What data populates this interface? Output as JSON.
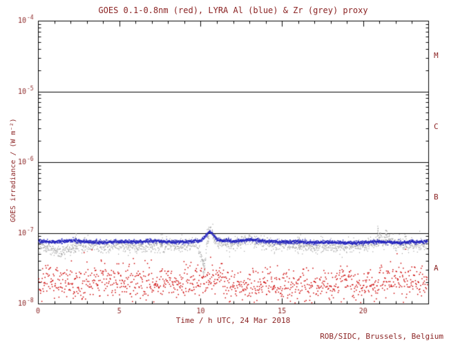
{
  "chart_data": {
    "type": "scatter",
    "title": "GOES 0.1-0.8nm (red), LYRA Al (blue) & Zr (grey) proxy",
    "xlabel": "Time / h UTC, 24 Mar 2018",
    "ylabel": "GOES irradiance / (W m⁻²)",
    "footer": "ROB/SIDC, Brussels, Belgium",
    "x_range": [
      0,
      24
    ],
    "x_major_ticks": [
      0,
      5,
      10,
      15,
      20
    ],
    "x_minor_step": 1,
    "y_exp_range": [
      -8,
      -4
    ],
    "y_tick_exponents": [
      -4,
      -5,
      -6,
      -7,
      -8
    ],
    "class_lines_exp": [
      -5,
      -6,
      -7
    ],
    "class_labels": [
      {
        "label": "M",
        "y_exp": -4.5
      },
      {
        "label": "C",
        "y_exp": -5.5
      },
      {
        "label": "B",
        "y_exp": -6.5
      },
      {
        "label": "A",
        "y_exp": -7.5
      }
    ],
    "colors": {
      "axis": "#000000",
      "text": "#8b2323",
      "red": "#cc0000",
      "blue": "#2020bb",
      "grey": "#a0a0a0"
    },
    "legend_position": "none",
    "grid": false,
    "series": [
      {
        "name": "LYRA Zr proxy",
        "color_key": "grey",
        "points_per_hour": 70,
        "noise_dex": 0.045,
        "dot": 1.2,
        "base": [
          [
            0,
            6.8e-08
          ],
          [
            0.5,
            6.2e-08
          ],
          [
            1,
            5.8e-08
          ],
          [
            1.5,
            5.2e-08
          ],
          [
            2,
            6e-08
          ],
          [
            2.5,
            6.5e-08
          ],
          [
            3,
            6.6e-08
          ],
          [
            4,
            6.4e-08
          ],
          [
            5,
            6.6e-08
          ],
          [
            6,
            6.3e-08
          ],
          [
            7,
            6.5e-08
          ],
          [
            8,
            6.6e-08
          ],
          [
            9,
            6.8e-08
          ],
          [
            9.8,
            7.2e-08
          ],
          [
            10.1,
            4e-08
          ],
          [
            10.25,
            2.8e-08
          ],
          [
            10.4,
            8e-08
          ],
          [
            10.6,
            1.15e-07
          ],
          [
            10.8,
            9e-08
          ],
          [
            11,
            7.5e-08
          ],
          [
            11.5,
            7e-08
          ],
          [
            12,
            6.8e-08
          ],
          [
            12.5,
            7.4e-08
          ],
          [
            13,
            8.2e-08
          ],
          [
            13.5,
            7.6e-08
          ],
          [
            14,
            7e-08
          ],
          [
            15,
            6.8e-08
          ],
          [
            16,
            6.6e-08
          ],
          [
            17,
            6.4e-08
          ],
          [
            18,
            6.6e-08
          ],
          [
            19,
            6.4e-08
          ],
          [
            20,
            6.6e-08
          ],
          [
            20.8,
            7e-08
          ],
          [
            21,
            9.5e-08
          ],
          [
            21.2,
            7.2e-08
          ],
          [
            21.5,
            8.5e-08
          ],
          [
            22,
            6.8e-08
          ],
          [
            23,
            6.6e-08
          ],
          [
            24,
            7e-08
          ]
        ],
        "spikes": [
          {
            "x": 2.3,
            "bottom": 5e-08,
            "top": 1.05e-07
          },
          {
            "x": 7.6,
            "bottom": 6e-08,
            "top": 9.5e-08
          },
          {
            "x": 10.2,
            "bottom": 2.4e-08,
            "top": 4.5e-08
          },
          {
            "x": 10.45,
            "bottom": 7e-08,
            "top": 1.35e-07
          },
          {
            "x": 16.1,
            "bottom": 6e-08,
            "top": 9.5e-08
          },
          {
            "x": 20.9,
            "bottom": 6.5e-08,
            "top": 1.25e-07
          },
          {
            "x": 21.4,
            "bottom": 6.5e-08,
            "top": 1.1e-07
          },
          {
            "x": 22.6,
            "bottom": 6e-08,
            "top": 1e-07
          }
        ]
      },
      {
        "name": "LYRA Al proxy",
        "color_key": "blue",
        "points_per_hour": 90,
        "noise_dex": 0.013,
        "dot": 1.4,
        "base": [
          [
            0,
            7.6e-08
          ],
          [
            1,
            7.4e-08
          ],
          [
            2,
            7.8e-08
          ],
          [
            3,
            7.5e-08
          ],
          [
            4,
            7.3e-08
          ],
          [
            5,
            7.6e-08
          ],
          [
            6,
            7.4e-08
          ],
          [
            7,
            7.7e-08
          ],
          [
            8,
            7.5e-08
          ],
          [
            9,
            7.4e-08
          ],
          [
            10,
            7.8e-08
          ],
          [
            10.3,
            9e-08
          ],
          [
            10.55,
            1.05e-07
          ],
          [
            10.8,
            9.2e-08
          ],
          [
            11,
            8e-08
          ],
          [
            12,
            7.6e-08
          ],
          [
            13,
            8e-08
          ],
          [
            14,
            7.6e-08
          ],
          [
            15,
            7.4e-08
          ],
          [
            16,
            7.5e-08
          ],
          [
            17,
            7.3e-08
          ],
          [
            18,
            7.4e-08
          ],
          [
            19,
            7.2e-08
          ],
          [
            20,
            7.3e-08
          ],
          [
            21,
            7.5e-08
          ],
          [
            22,
            7.3e-08
          ],
          [
            23,
            7.4e-08
          ],
          [
            24,
            7.5e-08
          ]
        ],
        "spikes": []
      },
      {
        "name": "GOES 0.1-0.8nm",
        "color_key": "red",
        "points_per_hour": 45,
        "noise_dex": 0.12,
        "dot": 1.5,
        "base": [
          [
            0,
            2e-08
          ],
          [
            1,
            2.1e-08
          ],
          [
            2,
            1.9e-08
          ],
          [
            3,
            2e-08
          ],
          [
            4,
            2.1e-08
          ],
          [
            5,
            2e-08
          ],
          [
            6,
            1.9e-08
          ],
          [
            7,
            2e-08
          ],
          [
            8,
            2.1e-08
          ],
          [
            9,
            2e-08
          ],
          [
            10,
            2.1e-08
          ],
          [
            11,
            2.2e-08
          ],
          [
            12,
            1.9e-08
          ],
          [
            13,
            1.8e-08
          ],
          [
            14,
            1.9e-08
          ],
          [
            15,
            1.8e-08
          ],
          [
            16,
            1.7e-08
          ],
          [
            17,
            1.8e-08
          ],
          [
            18,
            1.9e-08
          ],
          [
            19,
            2e-08
          ],
          [
            20,
            1.9e-08
          ],
          [
            21,
            2e-08
          ],
          [
            22,
            2.1e-08
          ],
          [
            23,
            2e-08
          ],
          [
            24,
            2e-08
          ]
        ],
        "spikes": []
      }
    ]
  }
}
